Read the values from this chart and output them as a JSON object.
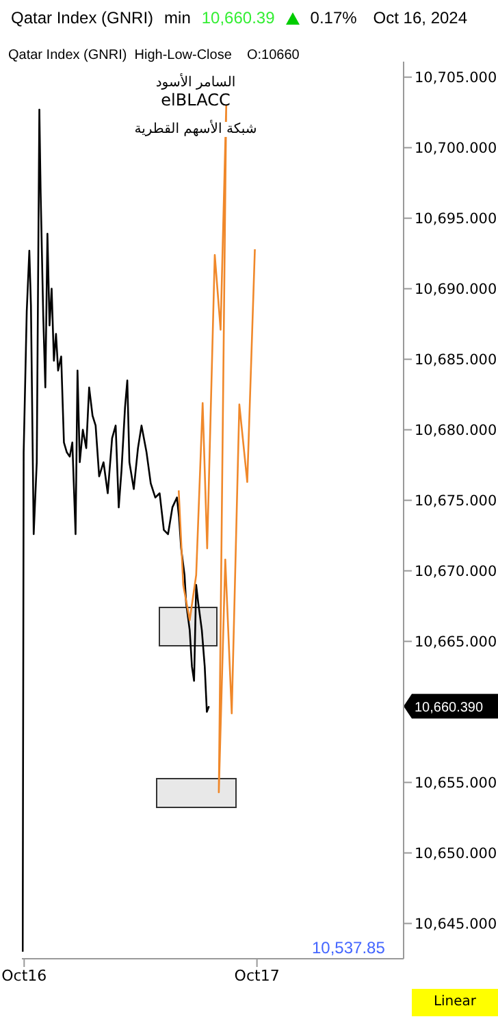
{
  "chart_data": {
    "type": "line",
    "title": "Qatar Index  (GNRI)",
    "subtitle": "Qatar Index (GNRI)  High-Low-Close    O:10660",
    "annotations": [
      "min",
      "10,660.39",
      "0.17%",
      "Oct 16, 2024",
      "السامر الأسود",
      "elBLACC",
      "شبكة الأسهم القطرية",
      "10,537.85",
      "Linear",
      "10,660.390"
    ],
    "series": [
      {
        "color": "#000000",
        "x": [
          "2024-10-15T23:51",
          "2024-10-15T23:57",
          "2024-10-16T00:16",
          "2024-10-16T00:32",
          "2024-10-16T00:42",
          "2024-10-16T00:59",
          "2024-10-16T01:18",
          "2024-10-16T01:34",
          "2024-10-16T01:42",
          "2024-10-16T01:58",
          "2024-10-16T02:11",
          "2024-10-16T02:24",
          "2024-10-16T02:37",
          "2024-10-16T02:50",
          "2024-10-16T03:04",
          "2024-10-16T03:17",
          "2024-10-16T03:30",
          "2024-10-16T03:49",
          "2024-10-16T04:06",
          "2024-10-16T04:24",
          "2024-10-16T04:42",
          "2024-10-16T04:58",
          "2024-10-16T05:18",
          "2024-10-16T05:30",
          "2024-10-16T05:44",
          "2024-10-16T06:03",
          "2024-10-16T06:24",
          "2024-10-16T06:42",
          "2024-10-16T07:03",
          "2024-10-16T07:22",
          "2024-10-16T07:44",
          "2024-10-16T08:11",
          "2024-10-16T08:37",
          "2024-10-16T09:04",
          "2024-10-16T09:26",
          "2024-10-16T09:45",
          "2024-10-16T10:02",
          "2024-10-16T10:24",
          "2024-10-16T10:38",
          "2024-10-16T10:51",
          "2024-10-16T11:18",
          "2024-10-16T11:44",
          "2024-10-16T12:06",
          "2024-10-16T12:37",
          "2024-10-16T13:03",
          "2024-10-16T13:31",
          "2024-10-16T13:58",
          "2024-10-16T14:24",
          "2024-10-16T14:50",
          "2024-10-16T15:17",
          "2024-10-16T15:45",
          "2024-10-16T15:58",
          "2024-10-16T16:11",
          "2024-10-16T16:32",
          "2024-10-16T16:42",
          "2024-10-16T17:04",
          "2024-10-16T17:18",
          "2024-10-16T17:31",
          "2024-10-16T17:44",
          "2024-10-16T17:57",
          "2024-10-16T18:19",
          "2024-10-16T18:37",
          "2024-10-16T18:50",
          "2024-10-16T19:03"
        ],
        "values": [
          10643.0,
          10678.4,
          10688.4,
          10692.7,
          10688.8,
          10672.6,
          10677.7,
          10702.7,
          10696.8,
          10688.1,
          10683.0,
          10693.9,
          10687.4,
          10690.0,
          10684.9,
          10686.8,
          10684.2,
          10685.2,
          10679.1,
          10678.4,
          10678.1,
          10679.1,
          10672.6,
          10684.2,
          10677.7,
          10680.0,
          10678.7,
          10683.0,
          10681.0,
          10680.3,
          10676.7,
          10677.7,
          10675.5,
          10679.4,
          10680.3,
          10674.5,
          10677.1,
          10681.6,
          10683.5,
          10677.7,
          10675.8,
          10678.7,
          10680.3,
          10678.4,
          10676.2,
          10675.2,
          10675.5,
          10672.9,
          10672.6,
          10674.5,
          10675.2,
          10673.8,
          10671.6,
          10669.7,
          10667.7,
          10665.8,
          10663.2,
          10662.2,
          10669.0,
          10667.7,
          10665.8,
          10663.2,
          10660.0,
          10660.4
        ]
      },
      {
        "color": "#f0882a",
        "x": [
          "2024-10-16T15:56",
          "2024-10-16T16:24",
          "2024-10-16T17:04",
          "2024-10-16T17:44",
          "2024-10-16T18:24",
          "2024-10-16T18:52",
          "2024-10-16T19:39",
          "2024-10-16T20:15",
          "2024-10-16T20:50",
          "2024-10-16T20:04",
          "2024-10-16T20:44",
          "2024-10-16T21:24",
          "2024-10-16T22:11",
          "2024-10-16T23:00",
          "2024-10-16T23:47"
        ],
        "values": [
          10675.7,
          10669.0,
          10666.5,
          10669.7,
          10681.9,
          10671.6,
          10692.4,
          10687.1,
          10703.0,
          10654.3,
          10670.8,
          10659.9,
          10681.8,
          10676.3,
          10692.8
        ]
      }
    ],
    "xlim": [
      "2024-10-15T23:46",
      "2024-10-17T15:07"
    ],
    "xticks": [
      {
        "value": "2024-10-16",
        "label": "Oct16"
      },
      {
        "value": "2024-10-17",
        "label": "Oct17"
      }
    ],
    "ylim": [
      10642.5,
      10706.1
    ],
    "yticks": [
      {
        "value": 10645,
        "label": "10,645.000"
      },
      {
        "value": 10650,
        "label": "10,650.000"
      },
      {
        "value": 10655,
        "label": "10,655.000"
      },
      {
        "value": 10665,
        "label": "10,665.000"
      },
      {
        "value": 10670,
        "label": "10,670.000"
      },
      {
        "value": 10675,
        "label": "10,675.000"
      },
      {
        "value": 10680,
        "label": "10,680.000"
      },
      {
        "value": 10685,
        "label": "10,685.000"
      },
      {
        "value": 10690,
        "label": "10,690.000"
      },
      {
        "value": 10695,
        "label": "10,695.000"
      },
      {
        "value": 10700,
        "label": "10,700.000"
      },
      {
        "value": 10705,
        "label": "10,705.000"
      }
    ],
    "grid": false,
    "marker": "none",
    "line_style": "solid"
  }
}
